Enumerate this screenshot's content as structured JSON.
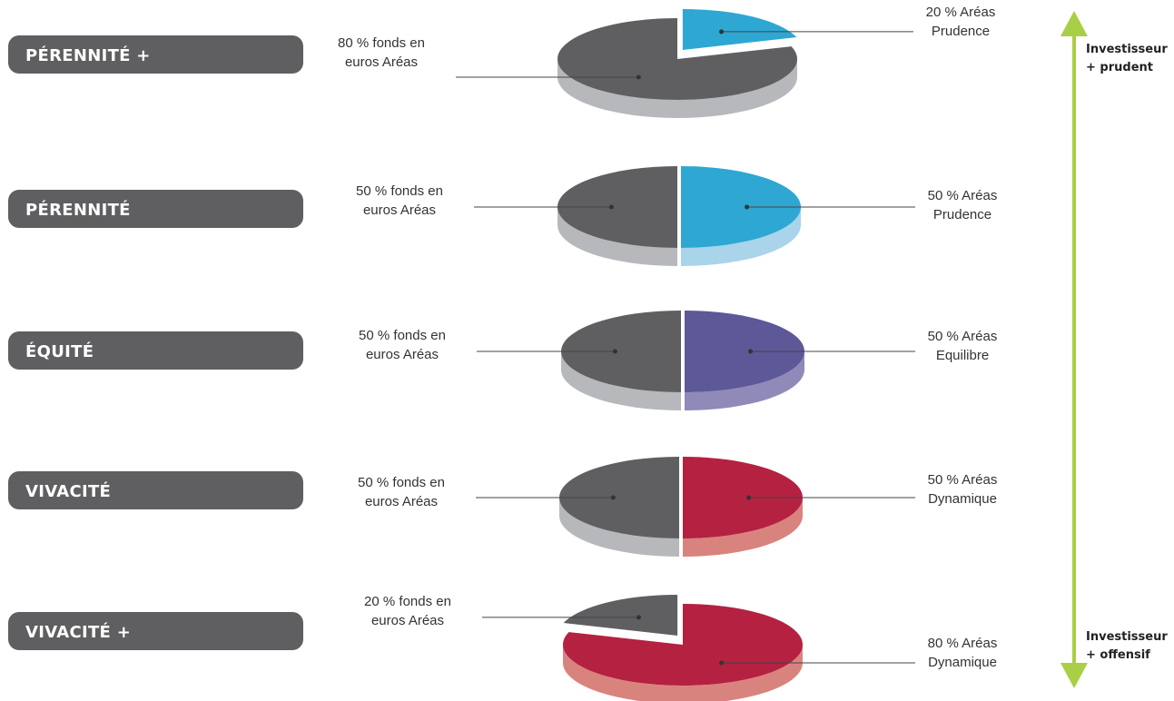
{
  "axis": {
    "top_label": [
      "Investisseur",
      "+ prudent"
    ],
    "bottom_label": [
      "Investisseur",
      "+ offensif"
    ],
    "color": "#a8cf45"
  },
  "colors": {
    "euro_top": "#5f5f61",
    "euro_side": "#b7b8bb",
    "prudence_top": "#2ea7d3",
    "prudence_side": "#a9d4ea",
    "equilibre_top": "#5d5898",
    "equilibre_side": "#8f8ab8",
    "dynamique_top": "#b52140",
    "dynamique_side": "#d9837e",
    "pill": "#5f5f61"
  },
  "chart_data": [
    {
      "type": "pie",
      "title": "PÉRENNITÉ +",
      "slices": [
        {
          "label": "80 % fonds en euros Aréas",
          "lines": [
            "80 % fonds en",
            "euros Aréas"
          ],
          "value": 80,
          "color": "euro_top",
          "side": "euro_side"
        },
        {
          "label": "20 % Aréas Prudence",
          "lines": [
            "20 % Aréas",
            "Prudence"
          ],
          "value": 20,
          "color": "prudence_top",
          "side": "prudence_side"
        }
      ]
    },
    {
      "type": "pie",
      "title": "PÉRENNITÉ",
      "slices": [
        {
          "label": "50 % fonds en euros Aréas",
          "lines": [
            "50 % fonds en",
            "euros Aréas"
          ],
          "value": 50,
          "color": "euro_top",
          "side": "euro_side"
        },
        {
          "label": "50 % Aréas Prudence",
          "lines": [
            "50 % Aréas",
            "Prudence"
          ],
          "value": 50,
          "color": "prudence_top",
          "side": "prudence_side"
        }
      ]
    },
    {
      "type": "pie",
      "title": "ÉQUITÉ",
      "slices": [
        {
          "label": "50 % fonds en euros Aréas",
          "lines": [
            "50 % fonds en",
            "euros Aréas"
          ],
          "value": 50,
          "color": "euro_top",
          "side": "euro_side"
        },
        {
          "label": "50 % Aréas Equilibre",
          "lines": [
            "50 % Aréas",
            "Equilibre"
          ],
          "value": 50,
          "color": "equilibre_top",
          "side": "equilibre_side"
        }
      ]
    },
    {
      "type": "pie",
      "title": "VIVACITÉ",
      "slices": [
        {
          "label": "50 % fonds en euros Aréas",
          "lines": [
            "50 % fonds en",
            "euros Aréas"
          ],
          "value": 50,
          "color": "euro_top",
          "side": "euro_side"
        },
        {
          "label": "50 % Aréas Dynamique",
          "lines": [
            "50 % Aréas",
            "Dynamique"
          ],
          "value": 50,
          "color": "dynamique_top",
          "side": "dynamique_side"
        }
      ]
    },
    {
      "type": "pie",
      "title": "VIVACITÉ +",
      "slices": [
        {
          "label": "20 % fonds en euros Aréas",
          "lines": [
            "20 % fonds en",
            "euros Aréas"
          ],
          "value": 20,
          "color": "euro_top",
          "side": "euro_side"
        },
        {
          "label": "80 % Aréas Dynamique",
          "lines": [
            "80 % Aréas",
            "Dynamique"
          ],
          "value": 80,
          "color": "dynamique_top",
          "side": "dynamique_side"
        }
      ]
    }
  ]
}
